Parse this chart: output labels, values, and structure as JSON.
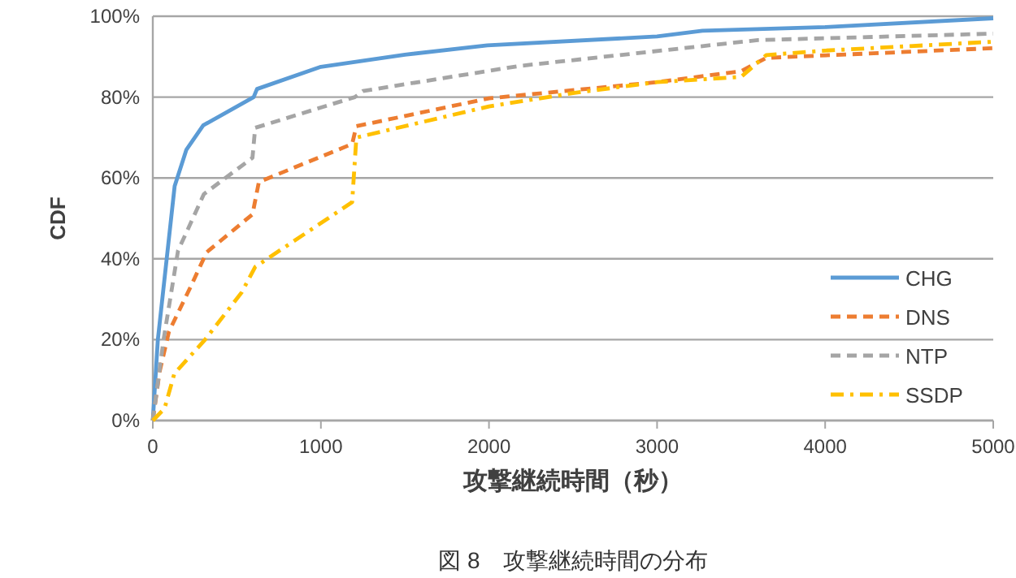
{
  "chart_data": {
    "type": "line",
    "xlabel": "攻撃継続時間（秒）",
    "ylabel": "CDF",
    "annotations": [
      "図 8　攻撃継続時間の分布"
    ],
    "xlim": [
      0,
      5000
    ],
    "xticks": [
      0,
      1000,
      2000,
      3000,
      4000,
      5000
    ],
    "ylim": [
      0,
      100
    ],
    "yticks": [
      {
        "value": 0,
        "label": "0%"
      },
      {
        "value": 20,
        "label": "20%"
      },
      {
        "value": 40,
        "label": "40%"
      },
      {
        "value": 60,
        "label": "60%"
      },
      {
        "value": 80,
        "label": "80%"
      },
      {
        "value": 100,
        "label": "100%"
      }
    ],
    "grid": "y",
    "legend": "bottom right",
    "series": [
      {
        "name": "CHG",
        "color": "#5b9bd5",
        "line_style": "solid",
        "x": [
          0,
          30,
          130,
          200,
          300,
          600,
          620,
          1000,
          1500,
          1990,
          3000,
          3270,
          4000,
          5000
        ],
        "values": [
          0,
          20,
          58,
          67,
          73,
          80,
          82,
          87.5,
          90.5,
          92.8,
          95,
          96.4,
          97.3,
          99.5
        ]
      },
      {
        "name": "DNS",
        "color": "#ed7d31",
        "line_style": "dashed",
        "x": [
          0,
          40,
          96,
          224,
          320,
          593,
          631,
          1186,
          1211,
          2000,
          3000,
          3500,
          3650,
          5000
        ],
        "values": [
          0,
          12,
          22,
          33,
          41.6,
          51,
          59,
          68.4,
          72.8,
          79.7,
          83.7,
          86.4,
          89.7,
          92.1
        ]
      },
      {
        "name": "NTP",
        "color": "#a5a5a5",
        "line_style": "dashed",
        "x": [
          0,
          64,
          150,
          304,
          593,
          609,
          1202,
          1250,
          2180,
          3600,
          5000
        ],
        "values": [
          0,
          20,
          42,
          56,
          65,
          72.4,
          80,
          81.5,
          87.7,
          94.1,
          95.7
        ]
      },
      {
        "name": "SSDP",
        "color": "#ffc000",
        "line_style": "dashdot",
        "x": [
          0,
          70,
          128,
          311,
          529,
          609,
          1186,
          1211,
          2000,
          2500,
          3000,
          3500,
          3650,
          4000,
          5000
        ],
        "values": [
          0,
          3,
          11.6,
          20,
          31.7,
          38,
          54,
          70,
          77.7,
          81,
          83.7,
          85,
          90.4,
          91.5,
          93.7
        ]
      }
    ]
  }
}
